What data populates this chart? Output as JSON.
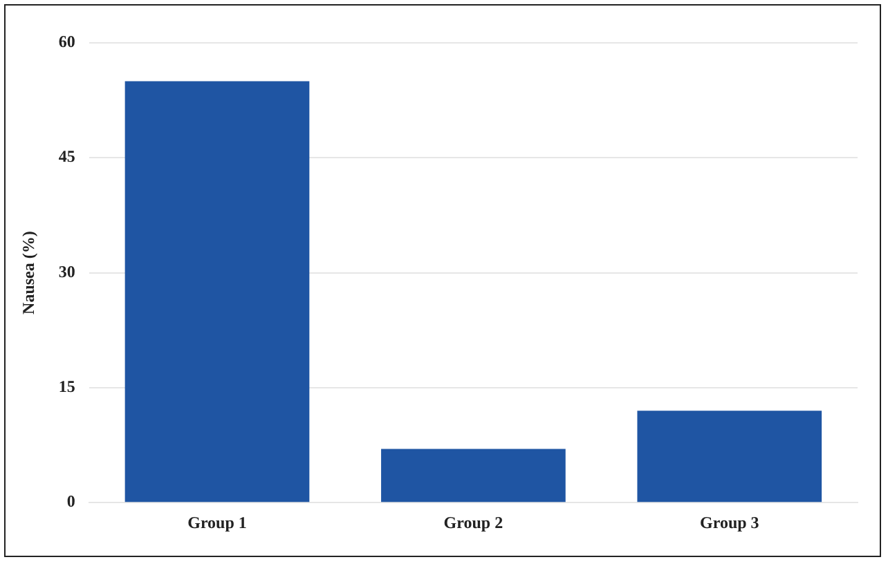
{
  "chart_data": {
    "type": "bar",
    "ylabel": "Nausea (%)",
    "categories": [
      "Group 1",
      "Group 2",
      "Group 3"
    ],
    "values": [
      55,
      7,
      12
    ],
    "color": "#1f55a3",
    "ylim": [
      0,
      60
    ],
    "yticks": [
      0,
      15,
      30,
      45,
      60
    ],
    "grid": "y",
    "legend": false
  }
}
